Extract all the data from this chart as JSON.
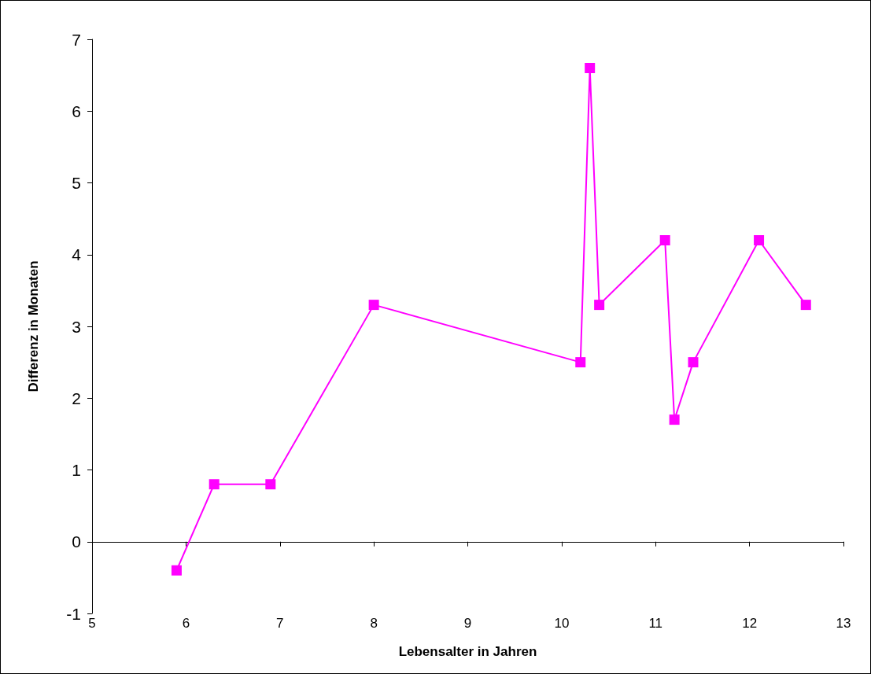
{
  "chart_data": {
    "type": "line",
    "xlabel": "Lebensalter in Jahren",
    "ylabel": "Differenz in Monaten",
    "x": [
      5.9,
      6.3,
      6.9,
      8,
      10.2,
      10.3,
      10.4,
      11.1,
      11.2,
      11.4,
      12.1,
      12.6
    ],
    "series": [
      {
        "color": "#ff00ff",
        "values": [
          -0.4,
          0.8,
          0.8,
          3.3,
          2.5,
          6.6,
          3.3,
          4.2,
          1.7,
          2.5,
          4.2,
          3.3
        ]
      }
    ],
    "xlim": [
      5,
      13
    ],
    "xticks": [
      5,
      6,
      7,
      8,
      9,
      10,
      11,
      12,
      13
    ],
    "ylim": [
      -1,
      7
    ],
    "yticks": [
      -1,
      0,
      1,
      2,
      3,
      4,
      5,
      6,
      7
    ],
    "marker": "square",
    "line_style": "solid"
  }
}
